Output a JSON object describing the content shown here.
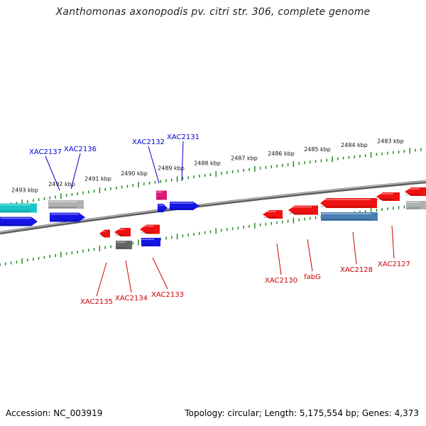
{
  "title": "Xanthomonas axonopodis pv. citri str. 306, complete genome",
  "accession": "Accession: NC_003919",
  "summary": "Topology: circular; Length: 5,175,554 bp; Genes: 4,373",
  "colors": {
    "backbone": "#7a7a7a",
    "ticks": "#1f8a1f",
    "label_blue": "#0000cc",
    "label_red": "#cc0000",
    "gene_red": "#ee1111",
    "gene_blue": "#1414e6",
    "gene_cyan": "#18c7c7",
    "gene_gray": "#b0b0b0",
    "gene_darkgray": "#666666",
    "gene_steel": "#4a7fb5",
    "gene_pink": "#e0187a"
  },
  "scale_labels": [
    "2493 kbp",
    "2492 kbp",
    "2491 kbp",
    "2490 kbp",
    "2489 kbp",
    "2488 kbp",
    "2487 kbp",
    "2486 kbp",
    "2485 kbp",
    "2484 kbp",
    "2483 kbp"
  ],
  "gene_labels": {
    "top": [
      "XAC2137",
      "XAC2136",
      "XAC2132",
      "XAC2131"
    ],
    "bottom": [
      "XAC2135",
      "XAC2134",
      "XAC2133",
      "XAC2130",
      "fabG",
      "XAC2128",
      "XAC2127"
    ]
  }
}
